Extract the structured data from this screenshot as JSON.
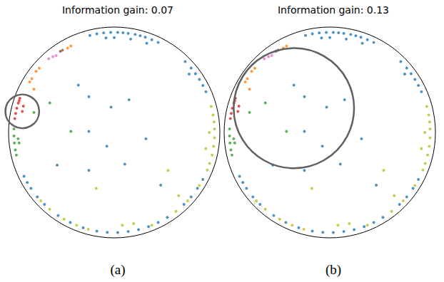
{
  "chart_data": [
    {
      "type": "scatter",
      "title": "Information gain: 0.07",
      "caption": "(a)",
      "xlim": [
        -1,
        1
      ],
      "ylim": [
        -1,
        1
      ],
      "tick_labels": false,
      "grid": false,
      "boundary": {
        "center": [
          0,
          0
        ],
        "radius": 1
      },
      "highlight": {
        "center": [
          -0.87,
          0.2
        ],
        "radius": 0.16
      },
      "series": [
        {
          "color": "#1f77b4",
          "values": [
            [
              -0.23,
              0.92
            ],
            [
              -0.165,
              0.936
            ],
            [
              -0.1,
              0.945
            ],
            [
              -0.033,
              0.95
            ],
            [
              0.033,
              0.95
            ],
            [
              0.083,
              0.946
            ],
            [
              0.132,
              0.94
            ],
            [
              0.198,
              0.93
            ],
            [
              0.246,
              0.918
            ],
            [
              0.294,
              0.904
            ],
            [
              0.356,
              0.88
            ],
            [
              0.416,
              0.854
            ],
            [
              0,
              0.9
            ],
            [
              0.156,
              0.886
            ],
            [
              -0.078,
              0.897
            ],
            [
              0.308,
              0.846
            ],
            [
              0.672,
              0.672
            ],
            [
              0.728,
              0.611
            ],
            [
              0.769,
              0.558
            ],
            [
              0.806,
              0.503
            ],
            [
              0.839,
              0.446
            ],
            [
              0.868,
              0.386
            ],
            [
              0.709,
              0.554
            ],
            [
              0.839,
              -0.446
            ],
            [
              0.788,
              -0.531
            ],
            [
              0.728,
              -0.611
            ],
            [
              0.66,
              -0.683
            ],
            [
              0.503,
              -0.806
            ],
            [
              0.416,
              -0.854
            ],
            [
              0.325,
              -0.893
            ],
            [
              0.23,
              -0.922
            ],
            [
              0.132,
              -0.94
            ],
            [
              0.033,
              -0.95
            ],
            [
              -0.066,
              -0.948
            ],
            [
              -0.165,
              -0.936
            ],
            [
              -0.294,
              -0.904
            ],
            [
              -0.416,
              -0.854
            ],
            [
              -0.531,
              -0.788
            ],
            [
              -0.66,
              -0.683
            ],
            [
              -0.728,
              -0.611
            ],
            [
              -0.788,
              -0.531
            ],
            [
              -0.823,
              -0.475
            ],
            [
              -0.854,
              -0.416
            ],
            [
              -0.34,
              0.45
            ],
            [
              -0.24,
              0.34
            ],
            [
              -0.03,
              0.24
            ],
            [
              0.14,
              0.31
            ],
            [
              -0.24,
              0.01
            ],
            [
              -0.07,
              -0.13
            ],
            [
              0.1,
              -0.3
            ],
            [
              0.3,
              -0.06
            ],
            [
              -0.24,
              -0.36
            ],
            [
              0.44,
              -0.5
            ],
            [
              -0.54,
              -0.31
            ]
          ]
        },
        {
          "color": "#bcbd22",
          "values": [
            [
              0.918,
              0.246
            ],
            [
              0.936,
              0.165
            ],
            [
              0.945,
              0.099
            ],
            [
              0.949,
              0.033
            ],
            [
              0.949,
              -0.05
            ],
            [
              0.941,
              -0.132
            ],
            [
              0.926,
              -0.214
            ],
            [
              0.903,
              -0.294
            ],
            [
              0.881,
              -0.356
            ],
            [
              0.9,
              0
            ],
            [
              0.867,
              -0.153
            ],
            [
              0.806,
              -0.503
            ],
            [
              0.695,
              -0.648
            ],
            [
              0.585,
              -0.749
            ],
            [
              0.356,
              -0.88
            ],
            [
              0.184,
              -0.865
            ],
            [
              0.077,
              -0.88
            ],
            [
              -0.246,
              -0.918
            ],
            [
              -0.356,
              -0.88
            ],
            [
              -0.475,
              -0.823
            ],
            [
              -0.611,
              -0.728
            ],
            [
              -0.695,
              -0.648
            ],
            [
              0.51,
              -0.36
            ],
            [
              -0.17,
              -0.53
            ],
            [
              0.61,
              -0.6
            ]
          ]
        },
        {
          "color": "#2ca02c",
          "values": [
            [
              -0.949,
              0.033
            ],
            [
              -0.949,
              -0.033
            ],
            [
              -0.945,
              -0.099
            ],
            [
              -0.936,
              -0.165
            ],
            [
              -0.926,
              -0.214
            ],
            [
              -0.9,
              -0.1
            ],
            [
              -0.91,
              -0.06
            ],
            [
              -0.76,
              0.19
            ],
            [
              -0.41,
              0.01
            ],
            [
              -0.61,
              0.28
            ]
          ]
        },
        {
          "color": "#d62728",
          "values": [
            [
              -0.893,
              0.325
            ],
            [
              -0.908,
              0.278
            ],
            [
              -0.922,
              0.23
            ],
            [
              -0.933,
              0.181
            ],
            [
              -0.941,
              0.132
            ],
            [
              -0.86,
              0.25
            ],
            [
              -0.87,
              0.2
            ],
            [
              -0.9,
              0.3
            ]
          ]
        },
        {
          "color": "#ff7f0e",
          "values": [
            [
              -0.78,
              0.51
            ],
            [
              -0.74,
              0.58
            ],
            [
              -0.71,
              0.61
            ],
            [
              -0.44,
              0.8
            ],
            [
              -0.41,
              0.82
            ],
            [
              -0.76,
              0.41
            ],
            [
              -0.8,
              0.48
            ]
          ]
        },
        {
          "color": "#e377c2",
          "values": [
            [
              -0.62,
              0.7
            ],
            [
              -0.58,
              0.72
            ],
            [
              -0.55,
              0.73
            ]
          ]
        },
        {
          "color": "#8c564b",
          "values": [
            [
              -0.51,
              0.77
            ],
            [
              -0.49,
              0.78
            ]
          ]
        }
      ]
    },
    {
      "type": "scatter",
      "title": "Information gain: 0.13",
      "caption": "(b)",
      "xlim": [
        -1,
        1
      ],
      "ylim": [
        -1,
        1
      ],
      "tick_labels": false,
      "grid": false,
      "boundary": {
        "center": [
          0,
          0
        ],
        "radius": 1
      },
      "highlight": {
        "center": [
          -0.34,
          0.23
        ],
        "radius": 0.57
      },
      "series": [
        {
          "color": "#1f77b4",
          "values": [
            [
              -0.23,
              0.92
            ],
            [
              -0.165,
              0.936
            ],
            [
              -0.1,
              0.945
            ],
            [
              -0.033,
              0.95
            ],
            [
              0.033,
              0.95
            ],
            [
              0.083,
              0.946
            ],
            [
              0.132,
              0.94
            ],
            [
              0.198,
              0.93
            ],
            [
              0.246,
              0.918
            ],
            [
              0.294,
              0.904
            ],
            [
              0.356,
              0.88
            ],
            [
              0.416,
              0.854
            ],
            [
              0,
              0.9
            ],
            [
              0.156,
              0.886
            ],
            [
              -0.078,
              0.897
            ],
            [
              0.308,
              0.846
            ],
            [
              0.672,
              0.672
            ],
            [
              0.728,
              0.611
            ],
            [
              0.769,
              0.558
            ],
            [
              0.806,
              0.503
            ],
            [
              0.839,
              0.446
            ],
            [
              0.868,
              0.386
            ],
            [
              0.709,
              0.554
            ],
            [
              0.839,
              -0.446
            ],
            [
              0.788,
              -0.531
            ],
            [
              0.728,
              -0.611
            ],
            [
              0.66,
              -0.683
            ],
            [
              0.503,
              -0.806
            ],
            [
              0.416,
              -0.854
            ],
            [
              0.325,
              -0.893
            ],
            [
              0.23,
              -0.922
            ],
            [
              0.132,
              -0.94
            ],
            [
              0.033,
              -0.95
            ],
            [
              -0.066,
              -0.948
            ],
            [
              -0.165,
              -0.936
            ],
            [
              -0.294,
              -0.904
            ],
            [
              -0.416,
              -0.854
            ],
            [
              -0.531,
              -0.788
            ],
            [
              -0.66,
              -0.683
            ],
            [
              -0.728,
              -0.611
            ],
            [
              -0.788,
              -0.531
            ],
            [
              -0.823,
              -0.475
            ],
            [
              -0.854,
              -0.416
            ],
            [
              -0.34,
              0.45
            ],
            [
              -0.24,
              0.34
            ],
            [
              -0.03,
              0.24
            ],
            [
              0.14,
              0.31
            ],
            [
              -0.24,
              0.01
            ],
            [
              -0.07,
              -0.13
            ],
            [
              0.1,
              -0.3
            ],
            [
              0.3,
              -0.06
            ],
            [
              -0.24,
              -0.36
            ],
            [
              0.44,
              -0.5
            ],
            [
              -0.54,
              -0.31
            ]
          ]
        },
        {
          "color": "#bcbd22",
          "values": [
            [
              0.918,
              0.246
            ],
            [
              0.936,
              0.165
            ],
            [
              0.945,
              0.099
            ],
            [
              0.949,
              0.033
            ],
            [
              0.949,
              -0.05
            ],
            [
              0.941,
              -0.132
            ],
            [
              0.926,
              -0.214
            ],
            [
              0.903,
              -0.294
            ],
            [
              0.881,
              -0.356
            ],
            [
              0.9,
              0
            ],
            [
              0.867,
              -0.153
            ],
            [
              0.806,
              -0.503
            ],
            [
              0.695,
              -0.648
            ],
            [
              0.585,
              -0.749
            ],
            [
              0.356,
              -0.88
            ],
            [
              0.184,
              -0.865
            ],
            [
              0.077,
              -0.88
            ],
            [
              -0.246,
              -0.918
            ],
            [
              -0.356,
              -0.88
            ],
            [
              -0.475,
              -0.823
            ],
            [
              -0.611,
              -0.728
            ],
            [
              -0.695,
              -0.648
            ],
            [
              0.51,
              -0.36
            ],
            [
              -0.17,
              -0.53
            ],
            [
              0.61,
              -0.6
            ]
          ]
        },
        {
          "color": "#2ca02c",
          "values": [
            [
              -0.949,
              0.033
            ],
            [
              -0.949,
              -0.033
            ],
            [
              -0.945,
              -0.099
            ],
            [
              -0.936,
              -0.165
            ],
            [
              -0.926,
              -0.214
            ],
            [
              -0.9,
              -0.1
            ],
            [
              -0.91,
              -0.06
            ],
            [
              -0.76,
              0.19
            ],
            [
              -0.41,
              0.01
            ],
            [
              -0.61,
              0.28
            ]
          ]
        },
        {
          "color": "#d62728",
          "values": [
            [
              -0.893,
              0.325
            ],
            [
              -0.908,
              0.278
            ],
            [
              -0.922,
              0.23
            ],
            [
              -0.933,
              0.181
            ],
            [
              -0.941,
              0.132
            ],
            [
              -0.86,
              0.25
            ],
            [
              -0.87,
              0.2
            ],
            [
              -0.9,
              0.3
            ]
          ]
        },
        {
          "color": "#ff7f0e",
          "values": [
            [
              -0.78,
              0.51
            ],
            [
              -0.74,
              0.58
            ],
            [
              -0.71,
              0.61
            ],
            [
              -0.44,
              0.8
            ],
            [
              -0.41,
              0.82
            ],
            [
              -0.76,
              0.41
            ],
            [
              -0.8,
              0.48
            ]
          ]
        },
        {
          "color": "#e377c2",
          "values": [
            [
              -0.62,
              0.7
            ],
            [
              -0.58,
              0.72
            ],
            [
              -0.55,
              0.73
            ]
          ]
        },
        {
          "color": "#8c564b",
          "values": [
            [
              -0.51,
              0.77
            ],
            [
              -0.49,
              0.78
            ]
          ]
        }
      ]
    }
  ]
}
